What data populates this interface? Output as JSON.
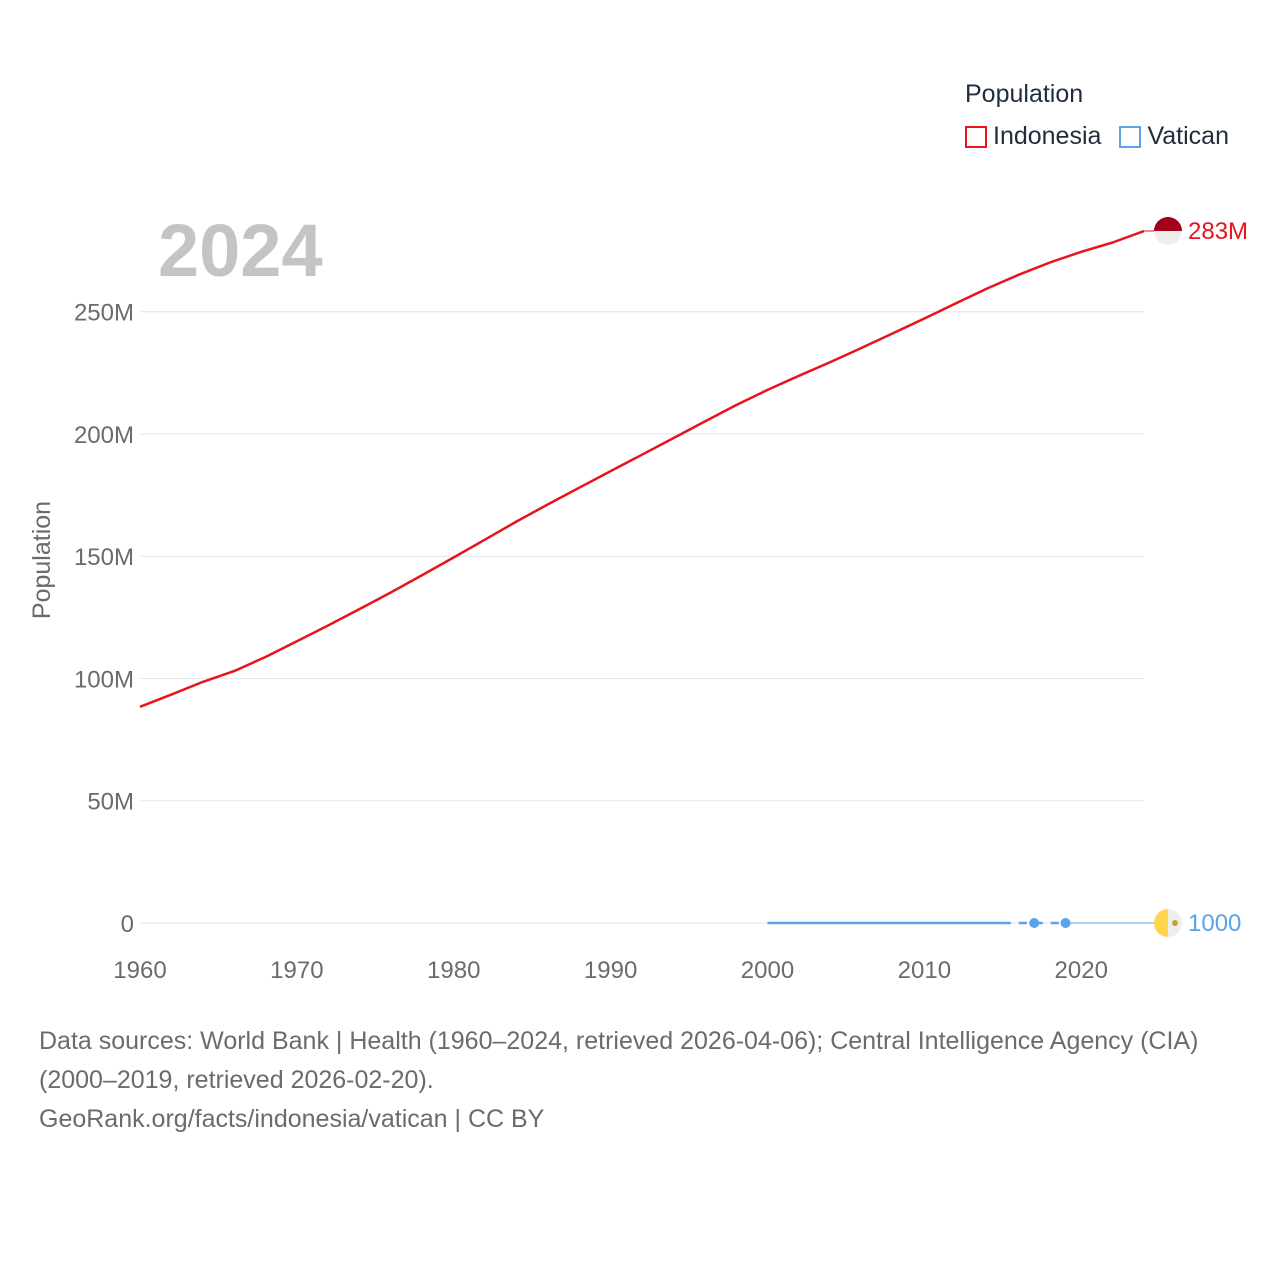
{
  "legend": {
    "title": "Population",
    "items": [
      {
        "label": "Indonesia",
        "color": "#e8141b"
      },
      {
        "label": "Vatican",
        "color": "#5aa3e8"
      }
    ]
  },
  "year_label": "2024",
  "source": {
    "line1": "Data sources: World Bank | Health (1960–2024, retrieved 2026-04-06); Central Intelligence Agency (CIA) (2000–2019, retrieved 2026-02-20).",
    "line2": "GeoRank.org/facts/indonesia/vatican | CC BY"
  },
  "chart_data": {
    "type": "line",
    "title": "Population",
    "ylabel": "Population",
    "xlabel": "",
    "xlim": [
      1960,
      2024
    ],
    "ylim": [
      0,
      283000000
    ],
    "x_ticks": [
      1960,
      1970,
      1980,
      1990,
      2000,
      2010,
      2020
    ],
    "y_ticks": [
      {
        "value": 0,
        "label": "0"
      },
      {
        "value": 50000000,
        "label": "50M"
      },
      {
        "value": 100000000,
        "label": "100M"
      },
      {
        "value": 150000000,
        "label": "150M"
      },
      {
        "value": 200000000,
        "label": "200M"
      },
      {
        "value": 250000000,
        "label": "250M"
      }
    ],
    "series": [
      {
        "name": "Indonesia",
        "color": "#e8141b",
        "end_label": "283M",
        "points": [
          [
            1960,
            88400000
          ],
          [
            1962,
            93400000
          ],
          [
            1964,
            98600000
          ],
          [
            1966,
            103000000
          ],
          [
            1968,
            108800000
          ],
          [
            1970,
            115200000
          ],
          [
            1972,
            121700000
          ],
          [
            1974,
            128400000
          ],
          [
            1976,
            135200000
          ],
          [
            1978,
            142300000
          ],
          [
            1980,
            149500000
          ],
          [
            1982,
            156800000
          ],
          [
            1984,
            164200000
          ],
          [
            1986,
            171200000
          ],
          [
            1988,
            178000000
          ],
          [
            1990,
            184800000
          ],
          [
            1992,
            191500000
          ],
          [
            1994,
            198300000
          ],
          [
            1996,
            205100000
          ],
          [
            1998,
            211800000
          ],
          [
            2000,
            218000000
          ],
          [
            2002,
            223800000
          ],
          [
            2004,
            229400000
          ],
          [
            2006,
            235200000
          ],
          [
            2008,
            241200000
          ],
          [
            2010,
            247200000
          ],
          [
            2012,
            253400000
          ],
          [
            2014,
            259500000
          ],
          [
            2016,
            265100000
          ],
          [
            2018,
            270100000
          ],
          [
            2020,
            274500000
          ],
          [
            2022,
            278300000
          ],
          [
            2024,
            283000000
          ]
        ]
      },
      {
        "name": "Vatican",
        "color": "#5aa3e8",
        "end_label": "1000",
        "solid_segment": [
          [
            2000,
            880
          ],
          [
            2015,
            1000
          ]
        ],
        "dashed_segment": [
          [
            2015,
            1000
          ],
          [
            2019,
            1000
          ]
        ],
        "markers": [
          [
            2017,
            1000
          ],
          [
            2019,
            1000
          ]
        ],
        "extension": [
          [
            2019,
            1000
          ],
          [
            2025,
            1000
          ]
        ]
      }
    ]
  }
}
